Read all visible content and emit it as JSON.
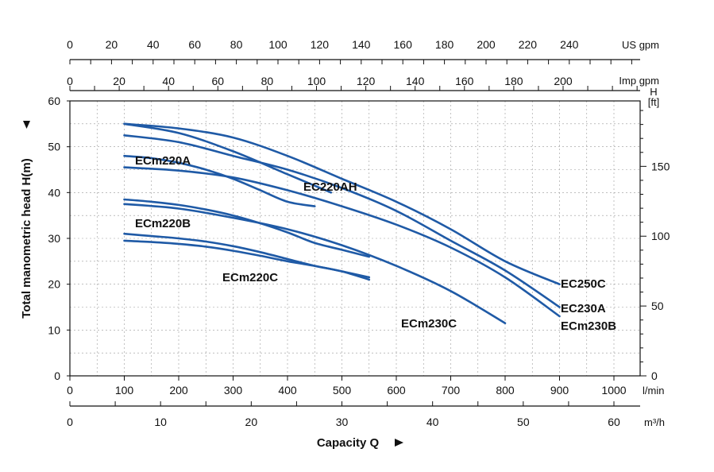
{
  "chart_data": {
    "type": "line",
    "xlabel": "Capacity Q",
    "ylabel": "Total manometric head H(m)",
    "x_axes": {
      "lmin": {
        "unit": "l/min",
        "range": [
          0,
          1050
        ],
        "ticks": [
          0,
          100,
          200,
          300,
          400,
          500,
          600,
          700,
          800,
          900,
          1000
        ]
      },
      "m3h": {
        "unit": "m³/h",
        "range": [
          0,
          63
        ],
        "ticks": [
          0,
          10,
          20,
          30,
          40,
          50,
          60
        ]
      },
      "usgpm": {
        "unit": "US gpm",
        "range": [
          0,
          277.4
        ],
        "ticks": [
          0,
          20,
          40,
          60,
          80,
          100,
          120,
          140,
          160,
          180,
          200,
          220,
          240
        ]
      },
      "impgpm": {
        "unit": "Imp gpm",
        "range": [
          0,
          231
        ],
        "ticks": [
          0,
          20,
          40,
          60,
          80,
          100,
          120,
          140,
          160,
          180,
          200
        ]
      }
    },
    "y_axes": {
      "m": {
        "range": [
          0,
          60
        ],
        "ticks": [
          0,
          10,
          20,
          30,
          40,
          50,
          60
        ]
      },
      "ft": {
        "unit_top": "H",
        "unit_bottom": "[ft]",
        "range": [
          0,
          196.9
        ],
        "ticks": [
          0,
          50,
          100,
          150
        ]
      }
    },
    "grid": true,
    "series": [
      {
        "name": "EC250C",
        "x": [
          100,
          200,
          300,
          400,
          500,
          600,
          700,
          800,
          900
        ],
        "y": [
          55,
          54,
          52,
          48,
          43,
          38,
          32,
          25,
          20
        ]
      },
      {
        "name": "EC230A",
        "x": [
          100,
          200,
          300,
          400,
          500,
          600,
          700,
          800,
          900
        ],
        "y": [
          52.5,
          51,
          48,
          45,
          41,
          36,
          29.5,
          23,
          15
        ]
      },
      {
        "name": "ECm230B",
        "x": [
          100,
          200,
          300,
          400,
          500,
          600,
          700,
          800,
          900
        ],
        "y": [
          45.5,
          44.8,
          43.3,
          40.5,
          37,
          33,
          28,
          21.5,
          13
        ]
      },
      {
        "name": "ECm220A",
        "x": [
          100,
          150,
          200,
          250,
          300,
          350,
          400,
          450
        ],
        "y": [
          48,
          47.5,
          46.5,
          45,
          43,
          40.5,
          38,
          37
        ]
      },
      {
        "name": "EC220AH",
        "x": [
          100,
          200,
          300,
          400,
          450,
          480
        ],
        "y": [
          55,
          53,
          49,
          44,
          41.5,
          40
        ]
      },
      {
        "name": "ECm220B",
        "x": [
          100,
          150,
          200,
          250,
          300,
          350,
          400,
          450,
          500,
          550
        ],
        "y": [
          38.5,
          38,
          37.3,
          36.3,
          35,
          33.3,
          31.3,
          29,
          27.5,
          26
        ]
      },
      {
        "name": "ECm230C",
        "x": [
          100,
          200,
          300,
          400,
          500,
          600,
          700,
          800
        ],
        "y": [
          37.5,
          36.5,
          34.5,
          32,
          28.5,
          24,
          18.5,
          11.5
        ]
      },
      {
        "name": "ECm220C",
        "x": [
          100,
          150,
          200,
          250,
          300,
          350,
          400,
          450,
          500,
          550
        ],
        "y": [
          31,
          30.5,
          30,
          29.3,
          28.3,
          27,
          25.5,
          24,
          22.8,
          21
        ]
      },
      {
        "name": "ECm220C_b",
        "x": [
          100,
          150,
          200,
          250,
          300,
          350,
          400,
          450,
          500,
          550
        ],
        "y": [
          29.5,
          29.2,
          28.8,
          28.2,
          27.3,
          26.2,
          25,
          24,
          22.8,
          21.5
        ]
      }
    ],
    "labels": [
      {
        "text": "EC250C"
      },
      {
        "text": "EC230A"
      },
      {
        "text": "ECm230B"
      },
      {
        "text": "ECm220A"
      },
      {
        "text": "EC220AH"
      },
      {
        "text": "ECm220B"
      },
      {
        "text": "ECm220C"
      },
      {
        "text": "ECm230C"
      }
    ],
    "line_color": "#1f5aa6"
  }
}
